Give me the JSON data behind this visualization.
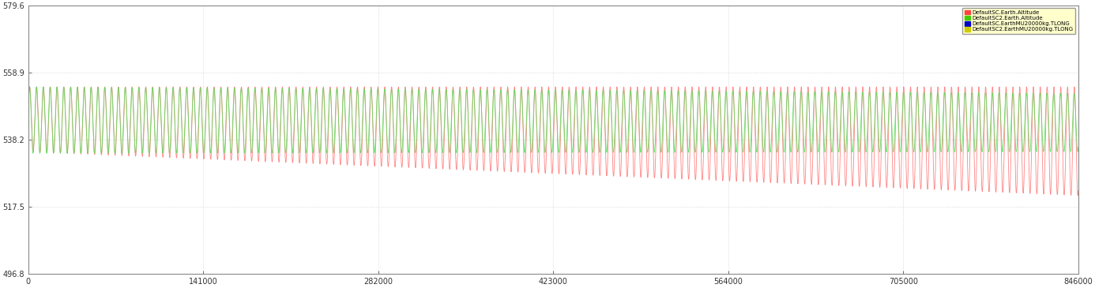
{
  "title": "",
  "xlabel": "",
  "ylabel": "",
  "xlim": [
    0,
    846000
  ],
  "ylim": [
    496.8,
    579.6
  ],
  "yticks": [
    496.8,
    517.5,
    538.2,
    558.9,
    579.6
  ],
  "xticks": [
    0,
    141000,
    282000,
    423000,
    564000,
    705000,
    846000
  ],
  "xtick_labels": [
    "0",
    "141000",
    "282000",
    "423000",
    "564000",
    "705000",
    "846000"
  ],
  "ytick_labels": [
    "496.8",
    "517.5",
    "538.2",
    "558.9",
    "579.6"
  ],
  "sc1_color": "#FF7777",
  "sc2_color": "#55DD55",
  "legend_entries": [
    {
      "label": "DefaultSC.Earth.Altitude",
      "color": "#FF4444"
    },
    {
      "label": "DefaultSC2.Earth.Altitude",
      "color": "#44CC00"
    },
    {
      "label": "DefaultSC.EarthMU20000kg.TLONG",
      "color": "#0000CC"
    },
    {
      "label": "DefaultSC2.EarthMU20000kg.TLONG",
      "color": "#CCCC00"
    }
  ],
  "legend_bg": "#FFFFCC",
  "background_color": "#FFFFFF",
  "axes_bg": "#FFFFFF",
  "x_max": 846000,
  "sc1_top": 554.5,
  "sc1_bottom_start": 534.5,
  "sc1_bottom_end": 521.0,
  "sc2_top_start": 554.5,
  "sc2_top_end": 552.5,
  "sc2_bottom_start": 534.0,
  "sc2_bottom_end": 534.5,
  "orbit_period": 5500
}
